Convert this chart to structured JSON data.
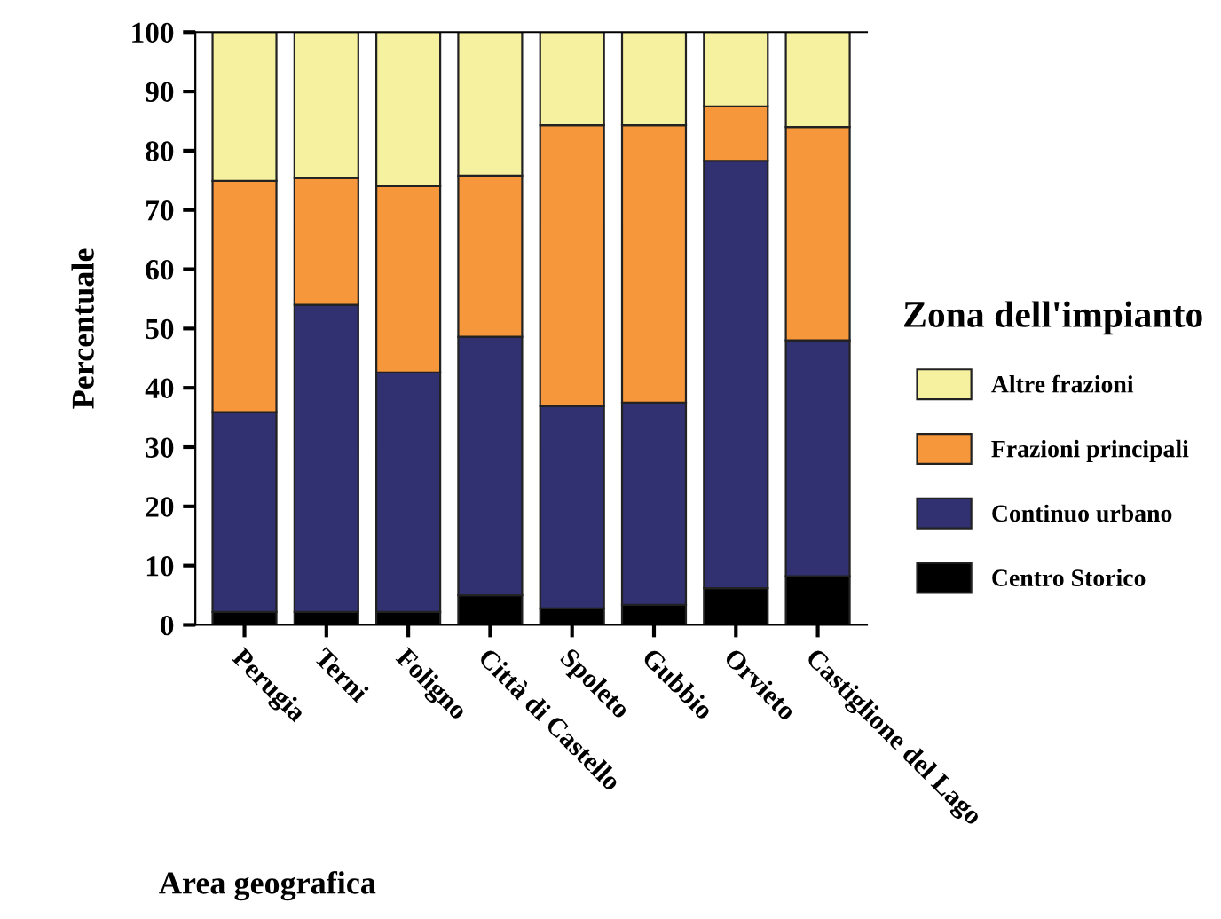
{
  "chart_data": {
    "type": "bar",
    "stacked": true,
    "xlabel": "Area geografica",
    "ylabel": "Percentuale",
    "legend_title": "Zona dell'impianto",
    "legend": "right",
    "grid": false,
    "categories": [
      "Perugia",
      "Terni",
      "Foligno",
      "Città di Castello",
      "Spoleto",
      "Gubbio",
      "Orvieto",
      "Castiglione del Lago"
    ],
    "series": [
      {
        "name": "Centro Storico",
        "color": "#000000",
        "values": [
          2.2,
          2.2,
          2.2,
          5.0,
          2.8,
          3.4,
          6.2,
          8.2
        ]
      },
      {
        "name": "Continuo urbano",
        "color": "#313071",
        "values": [
          33.7,
          51.8,
          40.4,
          43.6,
          34.1,
          34.1,
          72.1,
          39.8
        ]
      },
      {
        "name": "Frazioni principali",
        "color": "#f5973a",
        "values": [
          39.0,
          21.4,
          31.4,
          27.2,
          47.4,
          46.8,
          9.2,
          36.0
        ]
      },
      {
        "name": "Altre frazioni",
        "color": "#f6f19e",
        "values": [
          25.1,
          24.6,
          26.0,
          24.2,
          15.7,
          15.7,
          12.5,
          16.0
        ]
      }
    ],
    "ylim": [
      0,
      100
    ],
    "yticks": [
      0,
      10,
      20,
      30,
      40,
      50,
      60,
      70,
      80,
      90,
      100
    ]
  }
}
